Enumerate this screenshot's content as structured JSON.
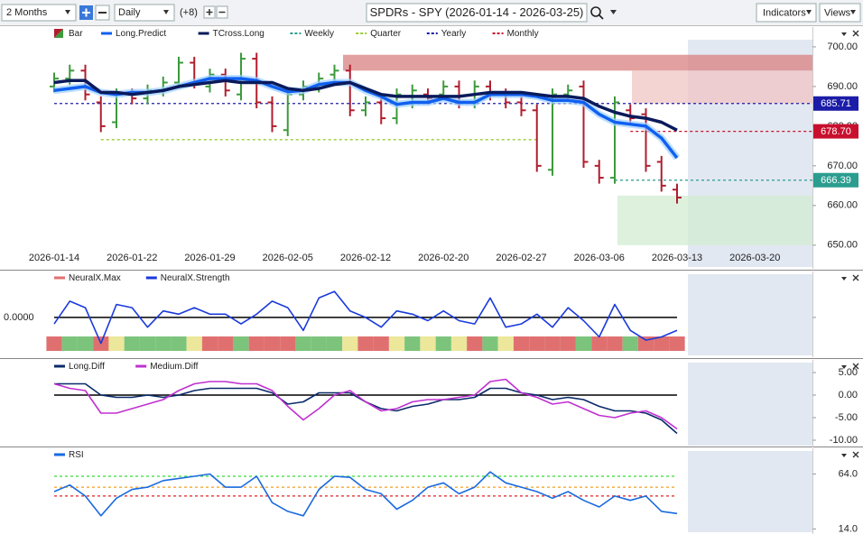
{
  "toolbar": {
    "period": "2 Months",
    "interval": "Daily",
    "offset": "(+8)",
    "title": "SPDRs - SPY (2026-01-14 - 2026-03-25)",
    "indicators": "Indicators",
    "views": "Views"
  },
  "chart_data": [
    {
      "type": "ohlc",
      "categories": [
        "2026-01-14",
        null,
        null,
        null,
        null,
        "2026-01-22",
        null,
        null,
        null,
        null,
        "2026-01-29",
        null,
        null,
        null,
        null,
        "2026-02-05",
        null,
        null,
        null,
        null,
        "2026-02-12",
        null,
        null,
        null,
        null,
        "2026-02-20",
        null,
        null,
        null,
        null,
        "2026-02-27",
        null,
        null,
        null,
        null,
        "2026-03-06",
        null,
        null,
        null,
        null,
        "2026-03-13",
        null,
        null,
        null,
        null,
        "2026-03-20"
      ],
      "ohlc": {
        "name": "Bar",
        "up_color": "#3c9a3c",
        "down_color": "#b01e2e",
        "open": [
          690,
          692,
          694,
          686,
          681,
          688,
          687,
          689,
          691,
          696,
          690,
          693,
          688,
          697,
          686,
          679,
          688,
          690,
          693,
          694,
          684,
          686,
          682,
          686,
          688,
          688,
          690,
          686,
          690,
          688,
          686,
          684,
          669,
          688,
          690,
          670,
          667,
          684,
          683,
          671,
          664,
          null,
          null,
          null,
          null,
          null
        ],
        "high": [
          693.5,
          695.5,
          695.5,
          687.5,
          689.5,
          689.5,
          690.5,
          692.5,
          697.5,
          697.5,
          694.5,
          694.5,
          698.5,
          698.5,
          687.5,
          689.5,
          691.5,
          693.5,
          695.5,
          695.5,
          687.5,
          687.5,
          689.5,
          690.5,
          689.5,
          691.5,
          691.5,
          691.5,
          691.5,
          689.5,
          687.5,
          685.5,
          689.5,
          690.5,
          691.5,
          671.5,
          687.5,
          685.5,
          684.5,
          672.5,
          665.5,
          null,
          null,
          null,
          null,
          null
        ],
        "low": [
          688.5,
          690.5,
          686.5,
          678.5,
          679.5,
          685.5,
          685.5,
          687.5,
          689.5,
          689.5,
          688.5,
          687.5,
          686.5,
          684.5,
          678.5,
          677.5,
          686.5,
          688.5,
          691.5,
          682.5,
          682.5,
          680.5,
          680.5,
          684.5,
          685.5,
          686.5,
          684.5,
          684.5,
          686.5,
          684.5,
          682.5,
          668.5,
          667.5,
          686.5,
          669.5,
          665.5,
          665.5,
          680.5,
          668.5,
          663.5,
          660.5,
          null,
          null,
          null,
          null,
          null
        ],
        "close": [
          692,
          694,
          688,
          680,
          688,
          687,
          689,
          691,
          696,
          691,
          693,
          689,
          697,
          686,
          680,
          688,
          690,
          692,
          694,
          684,
          686,
          682,
          688,
          689,
          687,
          690,
          686,
          690,
          688,
          686,
          684,
          670,
          688,
          689,
          671,
          667,
          686,
          682,
          670,
          665,
          662,
          null,
          null,
          null,
          null,
          null
        ]
      },
      "series": [
        {
          "name": "Long.Predict",
          "color": "#1060f0",
          "values": [
            689,
            689.5,
            690,
            688.5,
            688,
            688.5,
            688.5,
            689,
            690,
            691,
            692,
            692,
            692,
            691.5,
            690,
            688.7,
            689,
            690.5,
            691,
            691,
            689,
            687.5,
            685.5,
            686,
            686,
            687,
            686,
            686,
            688,
            688,
            688,
            687.5,
            686.5,
            686.5,
            686,
            683,
            681,
            680.5,
            680,
            677,
            672,
            null,
            null,
            null,
            null,
            null
          ]
        },
        {
          "name": "TCross.Long",
          "color": "#0a1a5a",
          "values": [
            691,
            691.5,
            691.5,
            688.5,
            688.5,
            688,
            688.5,
            689,
            690,
            690.5,
            691,
            691.5,
            691,
            691,
            691,
            689.5,
            689,
            689.5,
            690.5,
            691,
            689.5,
            688,
            687.5,
            687.5,
            687.5,
            687.5,
            687.5,
            688,
            688.5,
            688.5,
            688.5,
            688,
            687.5,
            687.5,
            687,
            685,
            683.5,
            682.5,
            682,
            681,
            679,
            null,
            null,
            null,
            null,
            null
          ]
        }
      ],
      "levels": [
        {
          "name": "Weekly",
          "color": "#2a9d8f",
          "value": 666.39
        },
        {
          "name": "Quarter",
          "color": "#9acd32",
          "value": 676.6
        },
        {
          "name": "Yearly",
          "color": "#1c1ca8",
          "value": 685.71
        },
        {
          "name": "Monthly",
          "color": "#c8102e",
          "value": 678.7,
          "value_label": "678.70"
        }
      ],
      "zones": [
        {
          "from": 694,
          "to": 698,
          "color": "#d98080"
        },
        {
          "from": 685.71,
          "to": 694,
          "color": "#f0c4c4"
        },
        {
          "from": 650,
          "to": 662.5,
          "color": "#d2ecd2"
        }
      ],
      "ylim": [
        644.5,
        701.8
      ],
      "yticks": [
        {
          "value": 650,
          "label": "650.00"
        },
        {
          "value": 660,
          "label": "660.00"
        },
        {
          "value": 670,
          "label": "670.00"
        },
        {
          "value": 680,
          "label": "680.00"
        },
        {
          "value": 690,
          "label": "690.00"
        },
        {
          "value": 700,
          "label": "700.00"
        }
      ]
    },
    {
      "type": "line",
      "strip": {
        "name": "NeuralX.Max",
        "colors": [
          "#e07070",
          "#7cc47c",
          "#7cc47c",
          "#e07070",
          "#ece79a",
          "#7cc47c",
          "#7cc47c",
          "#7cc47c",
          "#7cc47c",
          "#ece79a",
          "#e07070",
          "#e07070",
          "#7cc47c",
          "#e07070",
          "#e07070",
          "#e07070",
          "#7cc47c",
          "#7cc47c",
          "#7cc47c",
          "#ece79a",
          "#e07070",
          "#e07070",
          "#ece79a",
          "#7cc47c",
          "#ece79a",
          "#7cc47c",
          "#ece79a",
          "#e07070",
          "#7cc47c",
          "#ece79a",
          "#e07070",
          "#e07070",
          "#e07070",
          "#e07070",
          "#7cc47c",
          "#e07070",
          "#e07070",
          "#7cc47c",
          "#e07070",
          "#e07070",
          "#e07070"
        ]
      },
      "series": [
        {
          "name": "NeuralX.Strength",
          "color": "#1a3adb",
          "values": [
            -0.2,
            0.5,
            0.3,
            -0.8,
            0.4,
            0.3,
            -0.3,
            0.2,
            0.1,
            0.3,
            0.1,
            0.1,
            -0.2,
            0.1,
            0.5,
            0.3,
            -0.4,
            0.6,
            0.8,
            0.2,
            0,
            -0.3,
            0.2,
            0.1,
            -0.1,
            0.2,
            -0.1,
            -0.2,
            0.6,
            -0.3,
            -0.2,
            0.1,
            -0.3,
            0.3,
            -0.1,
            -0.6,
            0.4,
            -0.4,
            -0.7,
            -0.6,
            -0.4,
            null,
            null,
            null,
            null,
            null
          ]
        }
      ],
      "ylim": [
        -1.17,
        1.33
      ],
      "yticks": [
        {
          "value": 0,
          "label": "0.0000"
        }
      ]
    },
    {
      "type": "line",
      "series": [
        {
          "name": "Long.Diff",
          "color": "#0a2a6a",
          "values": [
            2.5,
            2.5,
            2.5,
            0,
            -0.5,
            -0.5,
            0,
            -0.5,
            0,
            1,
            1.5,
            1.5,
            1.5,
            1.5,
            0.5,
            -2,
            -1.5,
            0.5,
            0.5,
            0.5,
            -1.5,
            -3,
            -3.5,
            -2.5,
            -2,
            -1,
            -1,
            -0.5,
            1.5,
            1.5,
            0.5,
            0,
            -1,
            -0.5,
            -1,
            -2.5,
            -3.5,
            -3.5,
            -4,
            -5.5,
            -8.5,
            null,
            null,
            null,
            null,
            null
          ]
        },
        {
          "name": "Medium.Diff",
          "color": "#c030d0",
          "values": [
            2.5,
            1.5,
            1,
            -4,
            -4,
            -3,
            -2,
            -1,
            1,
            2.5,
            3,
            3,
            2.5,
            2.5,
            1,
            -2.5,
            -5.5,
            -3,
            0,
            1,
            -1.5,
            -3.5,
            -3,
            -1.5,
            -1,
            -1,
            -0.5,
            0,
            3,
            3.5,
            0.5,
            -0.5,
            -2,
            -1.5,
            -3,
            -4.5,
            -5,
            -4,
            -3.5,
            -5,
            -7.5,
            null,
            null,
            null,
            null,
            null
          ]
        }
      ],
      "ylim": [
        -11.2,
        7.2
      ],
      "yticks": [
        {
          "value": 5,
          "label": "5.00"
        },
        {
          "value": 0,
          "label": "0.00"
        },
        {
          "value": -5,
          "label": "-5.00"
        },
        {
          "value": -10,
          "label": "-10.00"
        }
      ]
    },
    {
      "type": "line",
      "series": [
        {
          "name": "RSI",
          "color": "#1a6ae0",
          "values": [
            48,
            54,
            44,
            26,
            42,
            50,
            52,
            58,
            60,
            62,
            64,
            52,
            52,
            62,
            38,
            30,
            26,
            50,
            62,
            61,
            50,
            46,
            32,
            40,
            52,
            56,
            46,
            52,
            66,
            56,
            52,
            48,
            42,
            48,
            40,
            34,
            44,
            40,
            44,
            30,
            28,
            null,
            null,
            null,
            null,
            null
          ]
        }
      ],
      "levels": [
        {
          "color": "#33dd33",
          "value": 62
        },
        {
          "color": "#f0a020",
          "value": 52
        },
        {
          "color": "#e02020",
          "value": 44
        }
      ],
      "ylim": [
        11,
        85
      ],
      "yticks": [
        {
          "value": 64,
          "label": "64.0"
        },
        {
          "value": 14,
          "label": "14.0"
        }
      ]
    }
  ]
}
